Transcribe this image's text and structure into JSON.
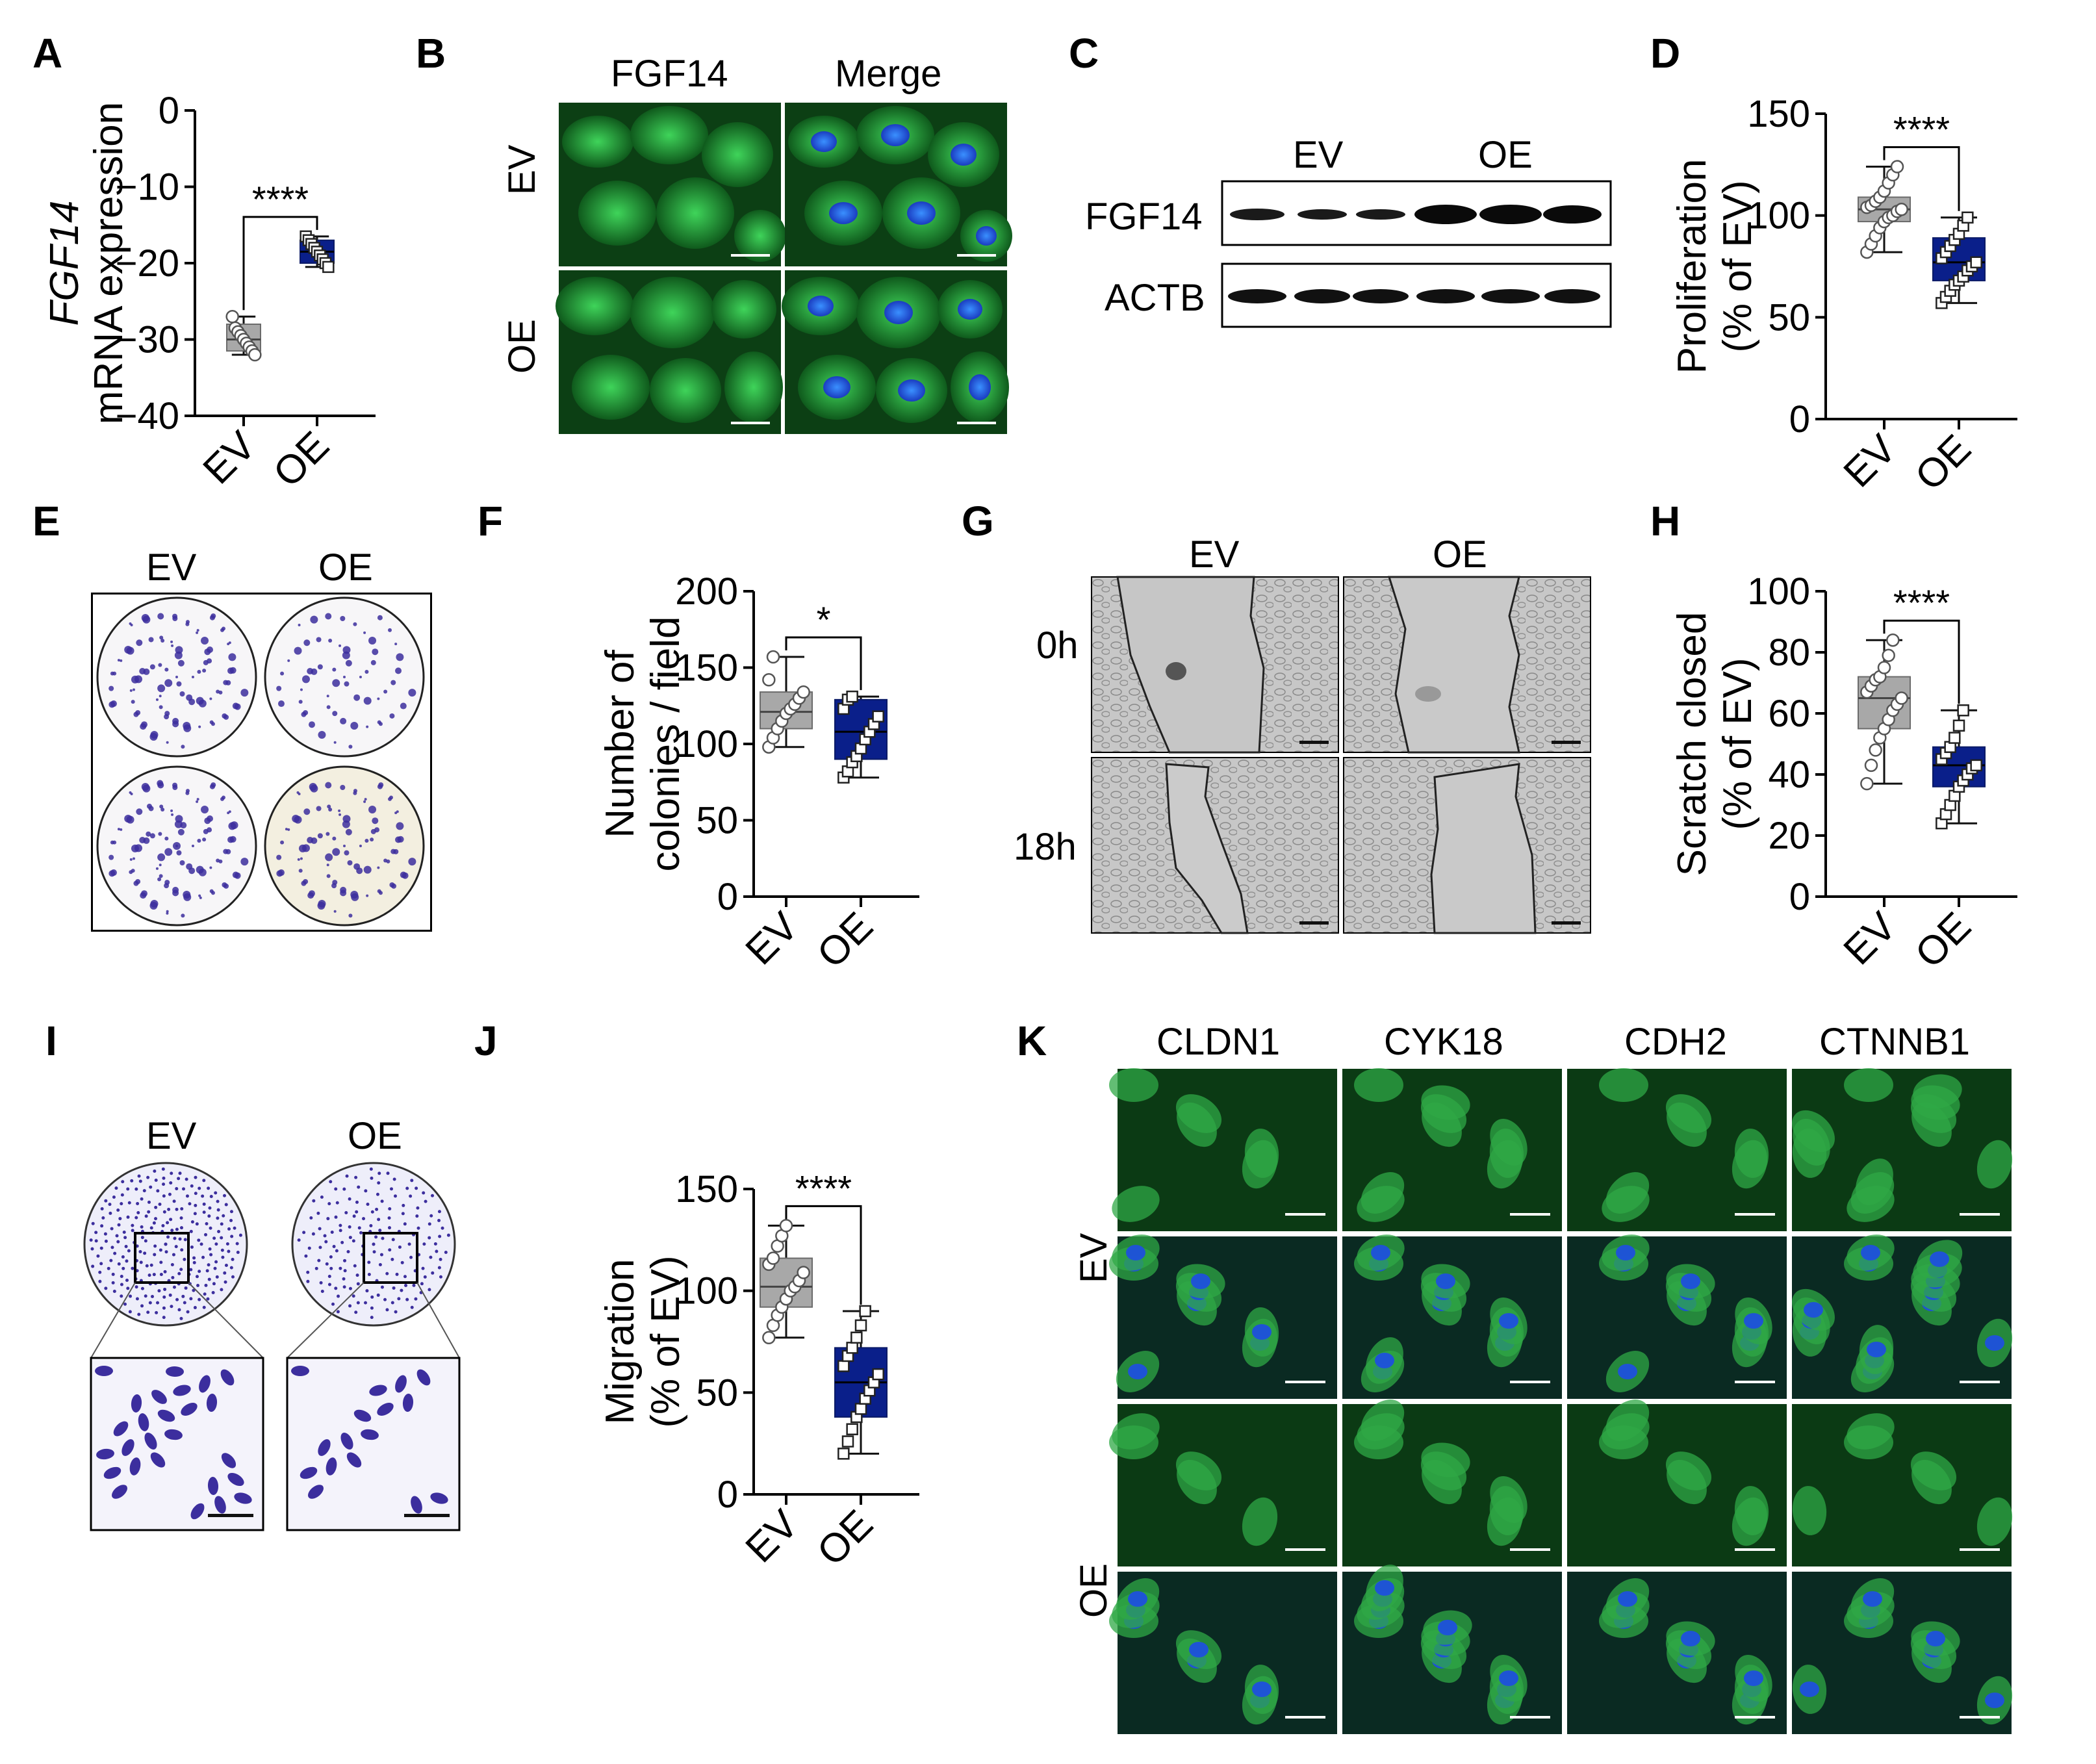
{
  "panels": {
    "A": {
      "label": "A"
    },
    "B": {
      "label": "B"
    },
    "C": {
      "label": "C"
    },
    "D": {
      "label": "D"
    },
    "E": {
      "label": "E"
    },
    "F": {
      "label": "F"
    },
    "G": {
      "label": "G"
    },
    "H": {
      "label": "H"
    },
    "I": {
      "label": "I"
    },
    "J": {
      "label": "J"
    },
    "K": {
      "label": "K"
    }
  },
  "panelB": {
    "col1": "FGF14",
    "col2": "Merge",
    "row1": "EV",
    "row2": "OE"
  },
  "panelC": {
    "group1": "EV",
    "group2": "OE",
    "band1": "FGF14",
    "band2": "ACTB"
  },
  "panelE": {
    "col1": "EV",
    "col2": "OE"
  },
  "panelG": {
    "col1": "EV",
    "col2": "OE",
    "row1": "0h",
    "row2": "18h"
  },
  "panelI": {
    "col1": "EV",
    "col2": "OE"
  },
  "panelK": {
    "cols": [
      "CLDN1",
      "CYK18",
      "CDH2",
      "CTNNB1"
    ],
    "row1": "EV",
    "row2": "OE"
  },
  "colors": {
    "ev_box": "#a8a8a8",
    "oe_box": "#0a1f8a",
    "fluor_green": "#27b34a",
    "nuclei_blue": "#1e50dc",
    "crystal_violet": "#3c2e9e"
  },
  "chart_data": [
    {
      "panel": "A",
      "type": "box",
      "ylabel_italic": "FGF14",
      "ylabel": "mRNA expression",
      "ylim": [
        -40,
        0
      ],
      "yticks": [
        0,
        -10,
        -20,
        -30,
        -40
      ],
      "categories": [
        "EV",
        "OE"
      ],
      "significance": "****",
      "boxes": [
        {
          "name": "EV",
          "min": -32,
          "q1": -31.5,
          "median": -30,
          "q3": -28,
          "max": -27,
          "points": [
            -27,
            -28.5,
            -29,
            -29.5,
            -30,
            -30.5,
            -31,
            -31.5,
            -32
          ]
        },
        {
          "name": "OE",
          "min": -20.5,
          "q1": -20,
          "median": -18.5,
          "q3": -17,
          "max": -16.5,
          "points": [
            -16.5,
            -17,
            -17.5,
            -18,
            -18.5,
            -19,
            -19.5,
            -20,
            -20.5
          ]
        }
      ]
    },
    {
      "panel": "D",
      "type": "box",
      "ylabel": "Proliferation",
      "ylabel2": "(% of EV)",
      "ylim": [
        0,
        150
      ],
      "yticks": [
        0,
        50,
        100,
        150
      ],
      "categories": [
        "EV",
        "OE"
      ],
      "significance": "****",
      "boxes": [
        {
          "name": "EV",
          "min": 82,
          "q1": 97,
          "median": 103,
          "q3": 109,
          "max": 124,
          "points": [
            82,
            86,
            90,
            94,
            97,
            99,
            100,
            102,
            103,
            104,
            105,
            107,
            109,
            112,
            116,
            120,
            124
          ]
        },
        {
          "name": "OE",
          "min": 57,
          "q1": 68,
          "median": 77,
          "q3": 89,
          "max": 99,
          "points": [
            57,
            60,
            63,
            66,
            68,
            70,
            73,
            75,
            77,
            79,
            82,
            85,
            88,
            91,
            95,
            99
          ]
        }
      ]
    },
    {
      "panel": "F",
      "type": "box",
      "ylabel": "Number of",
      "ylabel2": "colonies / field",
      "ylim": [
        0,
        200
      ],
      "yticks": [
        0,
        50,
        100,
        150,
        200
      ],
      "categories": [
        "EV",
        "OE"
      ],
      "significance": "*",
      "boxes": [
        {
          "name": "EV",
          "min": 98,
          "q1": 110,
          "median": 121,
          "q3": 134,
          "max": 157,
          "points": [
            98,
            104,
            110,
            115,
            120,
            123,
            126,
            130,
            134,
            142,
            157
          ]
        },
        {
          "name": "OE",
          "min": 78,
          "q1": 90,
          "median": 108,
          "q3": 129,
          "max": 131,
          "points": [
            78,
            82,
            88,
            92,
            97,
            103,
            108,
            113,
            118,
            123,
            129,
            131
          ]
        }
      ]
    },
    {
      "panel": "H",
      "type": "box",
      "ylabel": "Scratch closed",
      "ylabel2": "(% of EV)",
      "ylim": [
        0,
        100
      ],
      "yticks": [
        0,
        20,
        40,
        60,
        80,
        100
      ],
      "categories": [
        "EV",
        "OE"
      ],
      "significance": "****",
      "boxes": [
        {
          "name": "EV",
          "min": 37,
          "q1": 55,
          "median": 65,
          "q3": 72,
          "max": 84,
          "points": [
            37,
            43,
            48,
            52,
            55,
            58,
            61,
            63,
            65,
            67,
            69,
            71,
            72,
            75,
            79,
            84
          ]
        },
        {
          "name": "OE",
          "min": 24,
          "q1": 36,
          "median": 43,
          "q3": 49,
          "max": 61,
          "points": [
            24,
            27,
            30,
            33,
            36,
            38,
            40,
            42,
            43,
            45,
            47,
            49,
            52,
            56,
            61
          ]
        }
      ]
    },
    {
      "panel": "J",
      "type": "box",
      "ylabel": "Migration",
      "ylabel2": "(% of EV)",
      "ylim": [
        0,
        150
      ],
      "yticks": [
        0,
        50,
        100,
        150
      ],
      "categories": [
        "EV",
        "OE"
      ],
      "significance": "****",
      "boxes": [
        {
          "name": "EV",
          "min": 77,
          "q1": 92,
          "median": 102,
          "q3": 116,
          "max": 132,
          "points": [
            77,
            83,
            88,
            92,
            96,
            100,
            102,
            105,
            109,
            113,
            116,
            122,
            127,
            132
          ]
        },
        {
          "name": "OE",
          "min": 20,
          "q1": 38,
          "median": 55,
          "q3": 72,
          "max": 90,
          "points": [
            20,
            26,
            32,
            38,
            42,
            47,
            51,
            55,
            59,
            63,
            68,
            72,
            77,
            83,
            90
          ]
        }
      ]
    }
  ]
}
